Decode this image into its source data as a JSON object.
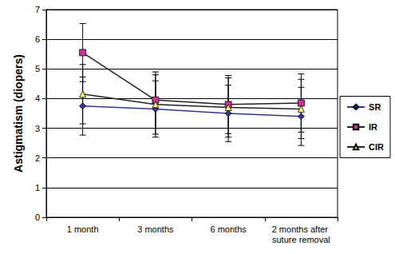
{
  "chart_data": {
    "type": "line",
    "y_label": "Astigmatism (diopers)",
    "categories": [
      "1 month",
      "3 months",
      "6 months",
      "2 months after suture removal"
    ],
    "series": [
      {
        "name": "SR",
        "color": "#333399",
        "marker": "diamond",
        "values": [
          3.75,
          3.65,
          3.5,
          3.4
        ],
        "errors": [
          0.98,
          0.95,
          0.95,
          0.98
        ]
      },
      {
        "name": "IR",
        "color": "#CC3399",
        "marker": "square",
        "values": [
          5.55,
          3.95,
          3.8,
          3.85
        ],
        "errors": [
          0.98,
          0.95,
          0.98,
          0.98
        ]
      },
      {
        "name": "CIR",
        "color": "#FFFF66",
        "marker": "triangle",
        "values": [
          4.15,
          3.8,
          3.7,
          3.65
        ],
        "errors": [
          1.0,
          1.0,
          1.0,
          1.0
        ]
      }
    ],
    "ylim": [
      0,
      7
    ],
    "yticks": [
      0,
      1,
      2,
      3,
      4,
      5,
      6,
      7
    ],
    "grid": true,
    "legend": "right"
  }
}
